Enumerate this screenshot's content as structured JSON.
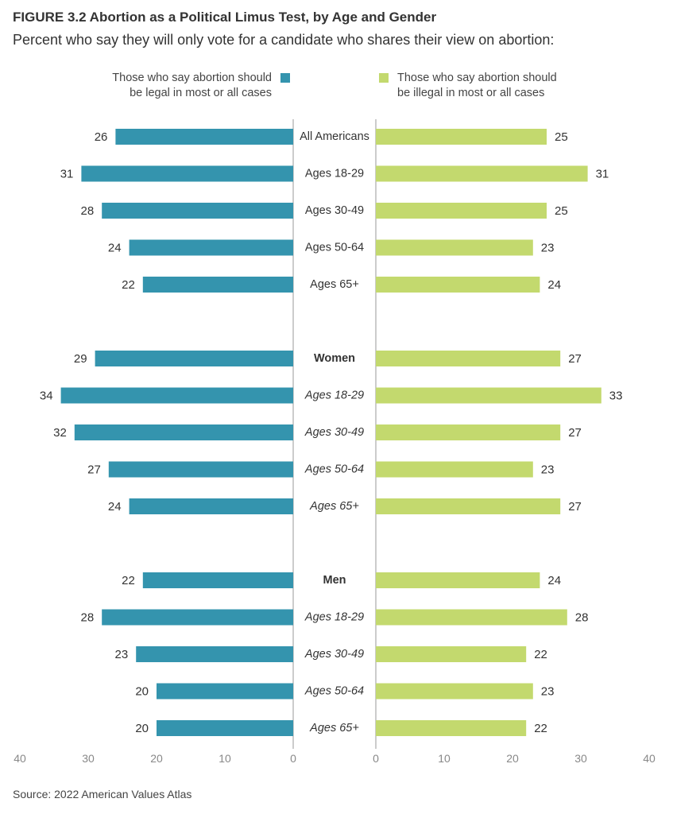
{
  "title": "FIGURE 3.2  Abortion as a Political Limus Test, by Age and Gender",
  "subtitle": "Percent who say they will only vote for a candidate who shares their view on abortion:",
  "legend": {
    "left_line1": "Those who say abortion should",
    "left_line2": "be legal in most or all cases",
    "right_line1": "Those who say abortion should",
    "right_line2": "be illegal in most or all cases"
  },
  "source": "Source: 2022 American Values Atlas",
  "colors": {
    "legal": "#3494ae",
    "illegal": "#c3d96e",
    "axis": "#cccccc",
    "tick_text": "#888888"
  },
  "chart_data": {
    "type": "bar",
    "orientation": "horizontal-diverging",
    "series": [
      {
        "name": "Those who say abortion should be legal in most or all cases",
        "values": [
          26,
          31,
          28,
          24,
          22,
          29,
          34,
          32,
          27,
          24,
          22,
          28,
          23,
          20,
          20
        ]
      },
      {
        "name": "Those who say abortion should be illegal in most or all cases",
        "values": [
          25,
          31,
          25,
          23,
          24,
          27,
          33,
          27,
          23,
          27,
          24,
          28,
          22,
          23,
          22
        ]
      }
    ],
    "categories": [
      {
        "label": "All Americans",
        "style": "normal"
      },
      {
        "label": "Ages 18-29",
        "style": "normal"
      },
      {
        "label": "Ages 30-49",
        "style": "normal"
      },
      {
        "label": "Ages 50-64",
        "style": "normal"
      },
      {
        "label": "Ages 65+",
        "style": "normal"
      },
      {
        "label": "Women",
        "style": "bold"
      },
      {
        "label": "Ages 18-29",
        "style": "italic"
      },
      {
        "label": "Ages 30-49",
        "style": "italic"
      },
      {
        "label": "Ages 50-64",
        "style": "italic"
      },
      {
        "label": "Ages 65+",
        "style": "italic"
      },
      {
        "label": "Men",
        "style": "bold"
      },
      {
        "label": "Ages 18-29",
        "style": "italic"
      },
      {
        "label": "Ages 30-49",
        "style": "italic"
      },
      {
        "label": "Ages 50-64",
        "style": "italic"
      },
      {
        "label": "Ages 65+",
        "style": "italic"
      }
    ],
    "xlim": [
      0,
      40
    ],
    "ticks_left": [
      "40",
      "30",
      "20",
      "10",
      "0"
    ],
    "ticks_right": [
      "0",
      "10",
      "20",
      "30",
      "40"
    ]
  }
}
